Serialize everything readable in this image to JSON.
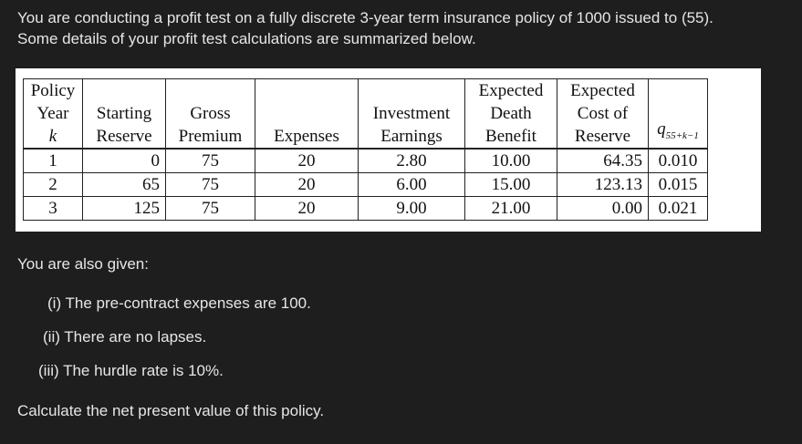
{
  "intro": {
    "line1": "You are conducting a profit test on a fully discrete 3-year term insurance policy of 1000 issued to (55).",
    "line2": "Some details of your profit test calculations are summarized below."
  },
  "table": {
    "headers": {
      "policy_year": [
        "Policy",
        "Year",
        "k"
      ],
      "starting_reserve": [
        "Starting",
        "Reserve"
      ],
      "gross_premium": [
        "Gross",
        "Premium"
      ],
      "expenses": [
        "Expenses"
      ],
      "investment_earnings": [
        "Investment",
        "Earnings"
      ],
      "expected_death_benefit": [
        "Expected",
        "Death",
        "Benefit"
      ],
      "expected_cost_of_reserve": [
        "Expected",
        "Cost of",
        "Reserve"
      ],
      "q": {
        "base": "q",
        "sub": "55+k−1"
      }
    },
    "rows": [
      [
        "1",
        "0",
        "75",
        "20",
        "2.80",
        "10.00",
        "64.35",
        "0.010"
      ],
      [
        "2",
        "65",
        "75",
        "20",
        "6.00",
        "15.00",
        "123.13",
        "0.015"
      ],
      [
        "3",
        "125",
        "75",
        "20",
        "9.00",
        "21.00",
        "0.00",
        "0.021"
      ]
    ]
  },
  "given": {
    "heading": "You are also given:",
    "conditions": [
      "(i) The pre-contract expenses are 100.",
      "(ii) There are no lapses.",
      "(iii) The hurdle rate is 10%."
    ]
  },
  "question": "Calculate the net present value of this policy."
}
